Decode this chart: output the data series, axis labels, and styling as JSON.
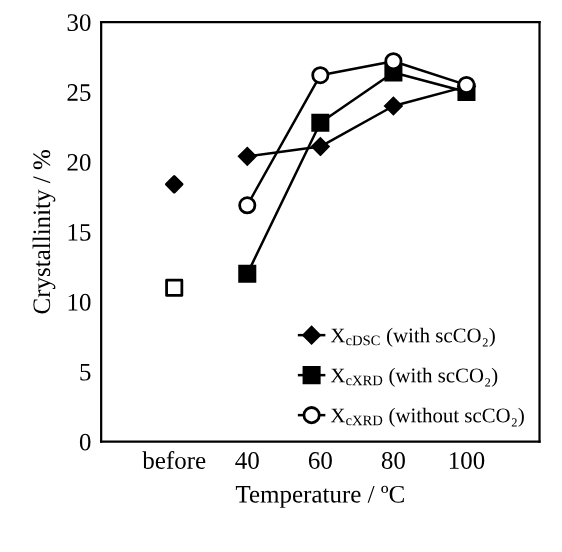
{
  "chart_data": {
    "type": "line",
    "xlabel": "Temperature / ºC",
    "ylabel": "Crystallinity / %",
    "categories": [
      "before",
      "40",
      "60",
      "80",
      "100"
    ],
    "ylim": [
      0,
      30
    ],
    "yticks": [
      0,
      5,
      10,
      15,
      20,
      25,
      30
    ],
    "grid": false,
    "legend": "bottom right",
    "series": [
      {
        "name": "X$_{cDSC}$ (with scCO₂)",
        "color": "#000000",
        "marker": "diamond",
        "values": [
          null,
          20.4,
          21.1,
          24.0,
          25.4
        ]
      },
      {
        "name": "X$_{cXRD}$ (with scCO₂)",
        "color": "#000000",
        "marker": "square",
        "values": [
          null,
          12.0,
          22.8,
          26.4,
          25.0
        ]
      },
      {
        "name": "X$_{cXRD}$ (without scCO₂)",
        "color": "#ffffff",
        "marker": "circle",
        "values": [
          null,
          16.9,
          26.2,
          27.2,
          25.5
        ]
      },
      {
        "type": "scatter",
        "color": "#000000",
        "marker": "diamond",
        "x": [
          "before"
        ],
        "values": [
          18.4
        ]
      },
      {
        "type": "scatter",
        "color": "#ffffff",
        "marker": "square",
        "x": [
          "before"
        ],
        "values": [
          11.0
        ]
      }
    ]
  }
}
